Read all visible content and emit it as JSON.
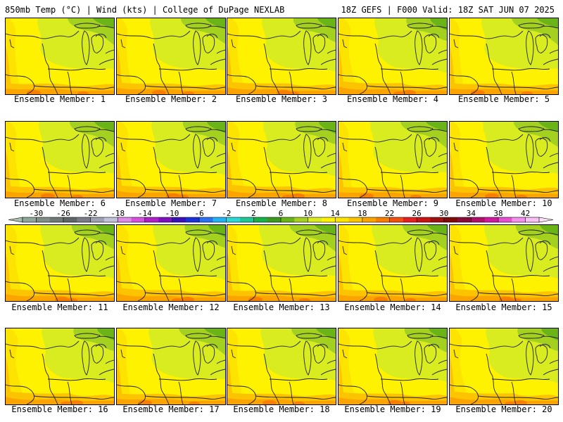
{
  "header": {
    "left": "850mb Temp (°C) | Wind (kts) | College of DuPage NEXLAB",
    "right": "18Z GEFS | F000 Valid: 18Z SAT JUN 07 2025"
  },
  "members": [
    {
      "label": "Ensemble Member: 1"
    },
    {
      "label": "Ensemble Member: 2"
    },
    {
      "label": "Ensemble Member: 3"
    },
    {
      "label": "Ensemble Member: 4"
    },
    {
      "label": "Ensemble Member: 5"
    },
    {
      "label": "Ensemble Member: 6"
    },
    {
      "label": "Ensemble Member: 7"
    },
    {
      "label": "Ensemble Member: 8"
    },
    {
      "label": "Ensemble Member: 9"
    },
    {
      "label": "Ensemble Member: 10"
    },
    {
      "label": "Ensemble Member: 11"
    },
    {
      "label": "Ensemble Member: 12"
    },
    {
      "label": "Ensemble Member: 13"
    },
    {
      "label": "Ensemble Member: 14"
    },
    {
      "label": "Ensemble Member: 15"
    },
    {
      "label": "Ensemble Member: 16"
    },
    {
      "label": "Ensemble Member: 17"
    },
    {
      "label": "Ensemble Member: 18"
    },
    {
      "label": "Ensemble Member: 19"
    },
    {
      "label": "Ensemble Member: 20"
    }
  ],
  "colorbar": {
    "tick_labels": [
      "-30",
      "-26",
      "-22",
      "-18",
      "-14",
      "-10",
      "-6",
      "-2",
      "2",
      "6",
      "10",
      "14",
      "18",
      "22",
      "26",
      "30",
      "34",
      "38",
      "42"
    ],
    "colors": [
      "#8fa69a",
      "#7f8f88",
      "#6f7a78",
      "#5e6668",
      "#7c7c88",
      "#9ea0b4",
      "#c0c2da",
      "#e08ae8",
      "#d650e0",
      "#b020c8",
      "#7e10c0",
      "#3a10b8",
      "#1a30d8",
      "#2a72f2",
      "#24b4f4",
      "#2ed8d4",
      "#20c898",
      "#18b048",
      "#3c9a20",
      "#6ab418",
      "#a4d020",
      "#d8ec20",
      "#fff200",
      "#fde400",
      "#fcc400",
      "#fba400",
      "#f77e00",
      "#f05010",
      "#e42020",
      "#c81414",
      "#a01010",
      "#7e0a0a",
      "#8a0a3a",
      "#b0106a",
      "#d018a0",
      "#e650d0",
      "#f490ec",
      "#f8c0f4"
    ]
  }
}
